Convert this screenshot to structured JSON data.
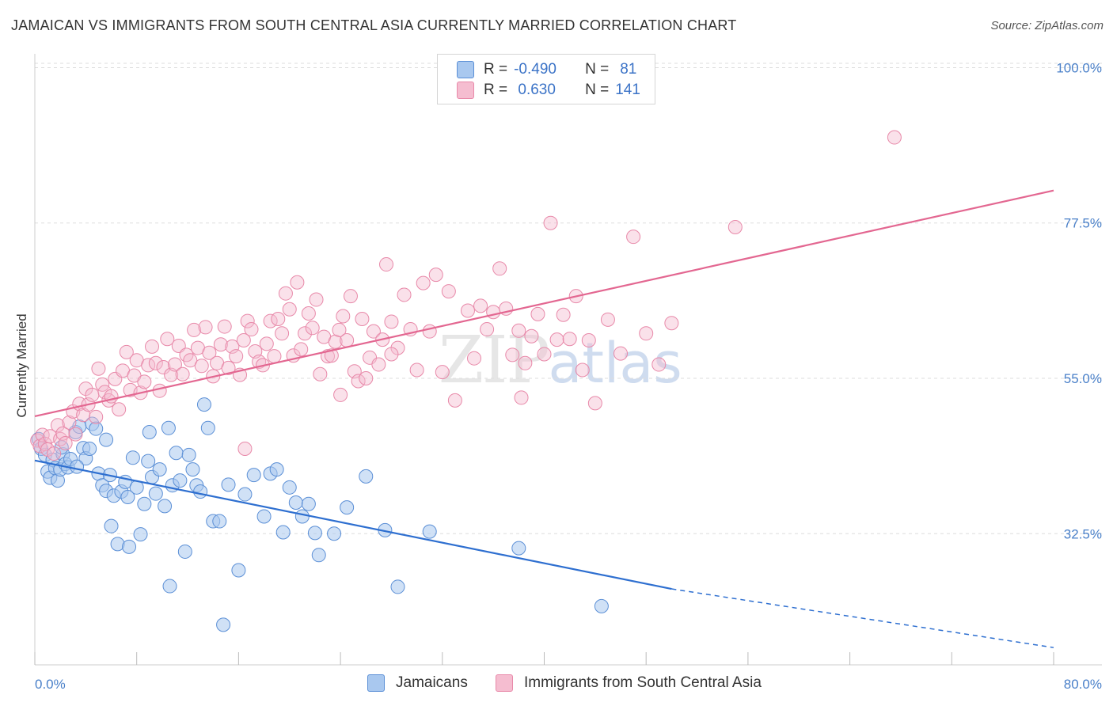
{
  "title": "JAMAICAN VS IMMIGRANTS FROM SOUTH CENTRAL ASIA CURRENTLY MARRIED CORRELATION CHART",
  "source": "Source: ZipAtlas.com",
  "watermark": {
    "part1": "ZIP",
    "part2": "atlas"
  },
  "colors": {
    "blue_fill": "#a9c8ef",
    "blue_stroke": "#5b8fd6",
    "blue_line": "#2e6fd0",
    "pink_fill": "#f5bdd0",
    "pink_stroke": "#e889a9",
    "pink_line": "#e36791",
    "axis_text": "#4a80c9",
    "grid": "#dddddd"
  },
  "legend": {
    "rows": [
      {
        "r_label": "R =",
        "r_value": "-0.490",
        "n_label": "N =",
        "n_value": "81"
      },
      {
        "r_label": "R =",
        "r_value": " 0.630",
        "n_label": "N =",
        "n_value": "141"
      }
    ]
  },
  "bottom_legend": {
    "series1": "Jamaicans",
    "series2": "Immigrants from South Central Asia"
  },
  "chart_data": {
    "type": "scatter",
    "title": "JAMAICAN VS IMMIGRANTS FROM SOUTH CENTRAL ASIA CURRENTLY MARRIED CORRELATION CHART",
    "xlabel": "",
    "ylabel": "Currently Married",
    "xlim": [
      0,
      80
    ],
    "ylim": [
      13.5,
      102
    ],
    "x_tick_labels": [
      "0.0%",
      "80.0%"
    ],
    "y_tick_values": [
      100,
      77.5,
      55,
      32.5
    ],
    "y_tick_labels": [
      "100.0%",
      "77.5%",
      "55.0%",
      "32.5%"
    ],
    "grid": true,
    "legend_position": "top-center",
    "series": [
      {
        "name": "Jamaicans",
        "r": -0.49,
        "n": 81,
        "trend": {
          "x0": 0,
          "y0": 43.1,
          "x1": 50,
          "y1": 24.5,
          "dashed_to_x": 80,
          "dashed_to_y": 16.0
        },
        "points": [
          [
            0.3,
            46.2
          ],
          [
            0.5,
            44.8
          ],
          [
            0.8,
            43.9
          ],
          [
            1.0,
            41.5
          ],
          [
            1.2,
            40.6
          ],
          [
            1.4,
            43.2
          ],
          [
            1.6,
            42.0
          ],
          [
            1.8,
            40.2
          ],
          [
            2.0,
            41.8
          ],
          [
            2.2,
            44.0
          ],
          [
            2.4,
            42.6
          ],
          [
            2.6,
            42.1
          ],
          [
            2.8,
            43.3
          ],
          [
            3.2,
            47.2
          ],
          [
            3.5,
            48.0
          ],
          [
            3.8,
            44.9
          ],
          [
            4.0,
            43.4
          ],
          [
            4.3,
            44.8
          ],
          [
            4.5,
            48.4
          ],
          [
            4.8,
            47.7
          ],
          [
            5.0,
            41.2
          ],
          [
            5.3,
            39.5
          ],
          [
            5.6,
            38.7
          ],
          [
            5.9,
            41.0
          ],
          [
            6.2,
            38.0
          ],
          [
            6.5,
            31.0
          ],
          [
            6.8,
            38.6
          ],
          [
            7.1,
            40.0
          ],
          [
            7.4,
            30.6
          ],
          [
            7.7,
            43.5
          ],
          [
            8.0,
            39.2
          ],
          [
            8.3,
            32.4
          ],
          [
            8.6,
            36.8
          ],
          [
            8.9,
            43.0
          ],
          [
            9.2,
            40.7
          ],
          [
            9.5,
            38.3
          ],
          [
            9.8,
            41.8
          ],
          [
            10.2,
            36.5
          ],
          [
            10.5,
            47.8
          ],
          [
            10.8,
            39.5
          ],
          [
            11.1,
            44.2
          ],
          [
            11.4,
            40.2
          ],
          [
            11.8,
            29.9
          ],
          [
            12.1,
            43.9
          ],
          [
            12.4,
            41.8
          ],
          [
            12.7,
            39.5
          ],
          [
            13.0,
            38.6
          ],
          [
            13.3,
            51.2
          ],
          [
            13.6,
            47.8
          ],
          [
            14.0,
            34.3
          ],
          [
            14.5,
            34.3
          ],
          [
            14.8,
            19.3
          ],
          [
            15.2,
            39.6
          ],
          [
            16.0,
            27.2
          ],
          [
            16.5,
            38.2
          ],
          [
            17.2,
            41.0
          ],
          [
            18.0,
            35.0
          ],
          [
            18.5,
            41.2
          ],
          [
            19.0,
            41.8
          ],
          [
            19.5,
            32.7
          ],
          [
            20.0,
            39.2
          ],
          [
            20.5,
            37.0
          ],
          [
            21.0,
            35.0
          ],
          [
            21.5,
            36.8
          ],
          [
            22.0,
            32.6
          ],
          [
            22.3,
            29.4
          ],
          [
            23.5,
            32.5
          ],
          [
            24.5,
            36.3
          ],
          [
            26.0,
            40.8
          ],
          [
            27.5,
            33.0
          ],
          [
            28.5,
            24.8
          ],
          [
            31.0,
            32.8
          ],
          [
            38.0,
            30.4
          ],
          [
            44.5,
            22.0
          ],
          [
            9.0,
            47.2
          ],
          [
            10.6,
            24.9
          ],
          [
            6.0,
            33.6
          ],
          [
            7.3,
            37.8
          ],
          [
            3.3,
            42.2
          ],
          [
            2.1,
            45.0
          ],
          [
            5.6,
            46.1
          ]
        ]
      },
      {
        "name": "Immigrants from South Central Asia",
        "r": 0.63,
        "n": 141,
        "trend": {
          "x0": 0,
          "y0": 49.5,
          "x1": 80,
          "y1": 82.2
        },
        "points": [
          [
            0.2,
            46.0
          ],
          [
            0.4,
            45.2
          ],
          [
            0.6,
            46.8
          ],
          [
            0.8,
            45.5
          ],
          [
            1.0,
            44.7
          ],
          [
            1.2,
            46.6
          ],
          [
            1.5,
            44.1
          ],
          [
            1.8,
            48.2
          ],
          [
            2.0,
            46.2
          ],
          [
            2.2,
            47.0
          ],
          [
            2.4,
            45.6
          ],
          [
            2.7,
            48.6
          ],
          [
            3.0,
            50.2
          ],
          [
            3.2,
            46.9
          ],
          [
            3.5,
            51.3
          ],
          [
            3.8,
            49.7
          ],
          [
            4.0,
            53.5
          ],
          [
            4.2,
            51.2
          ],
          [
            4.5,
            52.6
          ],
          [
            4.8,
            49.4
          ],
          [
            5.0,
            56.4
          ],
          [
            5.3,
            54.1
          ],
          [
            5.5,
            53.0
          ],
          [
            5.8,
            51.8
          ],
          [
            6.0,
            52.4
          ],
          [
            6.3,
            54.9
          ],
          [
            6.6,
            50.5
          ],
          [
            6.9,
            56.1
          ],
          [
            7.2,
            58.8
          ],
          [
            7.5,
            53.3
          ],
          [
            7.8,
            55.4
          ],
          [
            8.0,
            57.6
          ],
          [
            8.3,
            52.9
          ],
          [
            8.6,
            54.5
          ],
          [
            8.9,
            56.9
          ],
          [
            9.2,
            59.6
          ],
          [
            9.5,
            57.2
          ],
          [
            9.8,
            53.2
          ],
          [
            10.1,
            56.6
          ],
          [
            10.4,
            60.7
          ],
          [
            10.7,
            55.5
          ],
          [
            11.0,
            57.0
          ],
          [
            11.3,
            59.7
          ],
          [
            11.6,
            55.6
          ],
          [
            11.9,
            58.4
          ],
          [
            12.2,
            57.6
          ],
          [
            12.5,
            62.0
          ],
          [
            12.8,
            59.4
          ],
          [
            13.1,
            56.8
          ],
          [
            13.4,
            62.4
          ],
          [
            13.7,
            58.7
          ],
          [
            14.0,
            55.3
          ],
          [
            14.3,
            57.2
          ],
          [
            14.6,
            59.9
          ],
          [
            14.9,
            62.5
          ],
          [
            15.2,
            56.5
          ],
          [
            15.5,
            59.6
          ],
          [
            15.8,
            58.2
          ],
          [
            16.1,
            55.5
          ],
          [
            16.4,
            60.5
          ],
          [
            16.7,
            63.3
          ],
          [
            17.0,
            62.1
          ],
          [
            17.3,
            58.9
          ],
          [
            17.6,
            57.4
          ],
          [
            17.9,
            56.9
          ],
          [
            18.2,
            60.0
          ],
          [
            18.5,
            63.3
          ],
          [
            18.8,
            58.2
          ],
          [
            19.1,
            63.6
          ],
          [
            19.4,
            61.5
          ],
          [
            19.7,
            67.3
          ],
          [
            20.0,
            65.0
          ],
          [
            20.3,
            58.3
          ],
          [
            20.6,
            68.9
          ],
          [
            20.9,
            59.2
          ],
          [
            21.2,
            61.5
          ],
          [
            21.5,
            64.4
          ],
          [
            21.8,
            62.3
          ],
          [
            22.1,
            66.4
          ],
          [
            22.4,
            55.6
          ],
          [
            22.7,
            61.0
          ],
          [
            23.0,
            58.2
          ],
          [
            23.3,
            58.3
          ],
          [
            23.6,
            60.3
          ],
          [
            23.9,
            62.0
          ],
          [
            24.2,
            64.0
          ],
          [
            24.5,
            60.5
          ],
          [
            24.8,
            66.9
          ],
          [
            25.1,
            56.0
          ],
          [
            25.4,
            54.6
          ],
          [
            25.7,
            63.6
          ],
          [
            26.0,
            55.0
          ],
          [
            26.3,
            58.0
          ],
          [
            26.6,
            61.8
          ],
          [
            27.0,
            57.0
          ],
          [
            27.3,
            60.6
          ],
          [
            27.6,
            71.5
          ],
          [
            28.0,
            63.2
          ],
          [
            28.5,
            59.4
          ],
          [
            29.0,
            67.1
          ],
          [
            29.5,
            62.1
          ],
          [
            30.0,
            56.2
          ],
          [
            30.5,
            68.8
          ],
          [
            31.0,
            61.8
          ],
          [
            31.5,
            70.0
          ],
          [
            32.0,
            55.9
          ],
          [
            32.5,
            67.6
          ],
          [
            33.0,
            51.8
          ],
          [
            34.0,
            64.8
          ],
          [
            34.5,
            57.9
          ],
          [
            35.0,
            65.5
          ],
          [
            35.5,
            62.1
          ],
          [
            36.0,
            64.6
          ],
          [
            36.5,
            70.9
          ],
          [
            37.0,
            65.1
          ],
          [
            37.5,
            58.4
          ],
          [
            38.0,
            61.9
          ],
          [
            38.5,
            57.2
          ],
          [
            39.0,
            61.1
          ],
          [
            39.5,
            64.3
          ],
          [
            40.0,
            58.5
          ],
          [
            40.5,
            77.5
          ],
          [
            41.0,
            60.6
          ],
          [
            41.5,
            64.2
          ],
          [
            42.0,
            60.7
          ],
          [
            42.5,
            66.9
          ],
          [
            43.0,
            56.2
          ],
          [
            43.5,
            60.5
          ],
          [
            44.0,
            51.4
          ],
          [
            45.0,
            63.5
          ],
          [
            46.0,
            58.6
          ],
          [
            47.0,
            75.5
          ],
          [
            48.0,
            61.5
          ],
          [
            49.0,
            57.0
          ],
          [
            50.0,
            63.0
          ],
          [
            55.0,
            76.9
          ],
          [
            67.5,
            89.9
          ],
          [
            28.0,
            58.5
          ],
          [
            38.2,
            52.2
          ],
          [
            24.0,
            52.6
          ],
          [
            16.5,
            44.8
          ]
        ]
      }
    ]
  }
}
